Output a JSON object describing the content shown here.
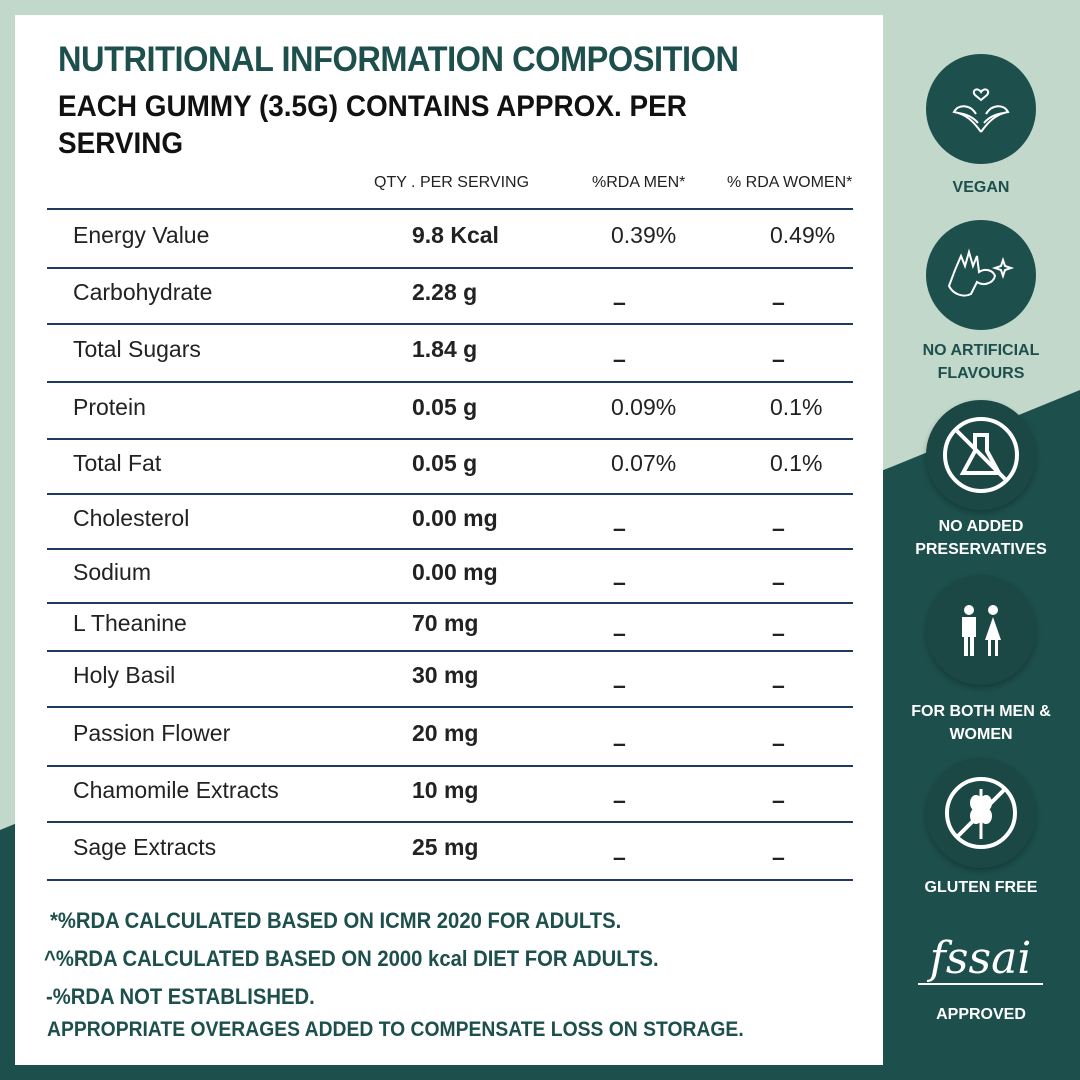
{
  "colors": {
    "brand": "#1d4f4c",
    "light_bg": "#c2d8cb",
    "rule": "#1e3a5f"
  },
  "title": "NUTRITIONAL INFORMATION COMPOSITION",
  "subtitle": "EACH GUMMY (3.5G) CONTAINS APPROX. PER SERVING",
  "columns": [
    "QTY . PER SERVING",
    "%RDA MEN*",
    "% RDA WOMEN*"
  ],
  "rows": [
    {
      "name": "Energy Value",
      "qty": "9.8 Kcal",
      "men": "0.39%",
      "women": "0.49%"
    },
    {
      "name": "Carbohydrate",
      "qty": "2.28 g",
      "men": "–",
      "women": "–"
    },
    {
      "name": "Total Sugars",
      "qty": "1.84 g",
      "men": "–",
      "women": "–"
    },
    {
      "name": "Protein",
      "qty": "0.05 g",
      "men": "0.09%",
      "women": "0.1%"
    },
    {
      "name": "Total Fat",
      "qty": "0.05 g",
      "men": "0.07%",
      "women": "0.1%"
    },
    {
      "name": "Cholesterol",
      "qty": "0.00 mg",
      "men": "–",
      "women": "–"
    },
    {
      "name": "Sodium",
      "qty": "0.00 mg",
      "men": "–",
      "women": "–"
    },
    {
      "name": "L Theanine",
      "qty": "70 mg",
      "men": "–",
      "women": "–"
    },
    {
      "name": "Holy Basil",
      "qty": "30 mg",
      "men": "–",
      "women": "–"
    },
    {
      "name": "Passion Flower",
      "qty": "20 mg",
      "men": "–",
      "women": "–"
    },
    {
      "name": "Chamomile Extracts",
      "qty": "10 mg",
      "men": "–",
      "women": "–"
    },
    {
      "name": "Sage Extracts",
      "qty": "25 mg",
      "men": "–",
      "women": "–"
    }
  ],
  "footnotes": [
    "*%RDA CALCULATED BASED ON ICMR 2020 FOR ADULTS.",
    "^%RDA CALCULATED BASED ON 2000 kcal DIET FOR ADULTS.",
    "-%RDA NOT ESTABLISHED.",
    "APPROPRIATE OVERAGES ADDED TO COMPENSATE LOSS ON STORAGE."
  ],
  "badges": [
    {
      "icon": "vegan-leaf-heart-icon",
      "label": "VEGAN"
    },
    {
      "icon": "ok-hand-sparkle-icon",
      "label": "NO ARTIFICIAL FLAVOURS"
    },
    {
      "icon": "no-flask-icon",
      "label": "NO ADDED PRESERVATIVES"
    },
    {
      "icon": "man-woman-icon",
      "label": "FOR BOTH MEN & WOMEN"
    },
    {
      "icon": "no-wheat-icon",
      "label": "GLUTEN FREE"
    },
    {
      "icon": "fssai-logo",
      "logo_text": "fssai",
      "label": "APPROVED"
    }
  ]
}
